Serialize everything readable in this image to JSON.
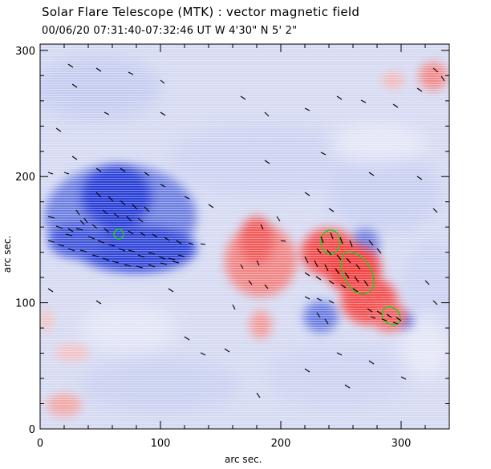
{
  "figure": {
    "title": "Solar Flare Telescope (MTK) : vector magnetic field",
    "subtitle": "00/06/20  07:31:40-07:32:46 UT      W 4'30\"   N 5' 2\"",
    "xlabel": "arc sec.",
    "ylabel": "arc sec.",
    "xlim": [
      0,
      340
    ],
    "ylim": [
      0,
      305
    ],
    "xticks": [
      0,
      100,
      200,
      300
    ],
    "yticks": [
      0,
      100,
      200,
      300
    ],
    "colors": {
      "negative_polarity": "#3a4fd8",
      "positive_polarity": "#f24a4a",
      "background": "#d6dcf2",
      "contour": "#1fd01f",
      "vectors": "#000000"
    }
  }
}
